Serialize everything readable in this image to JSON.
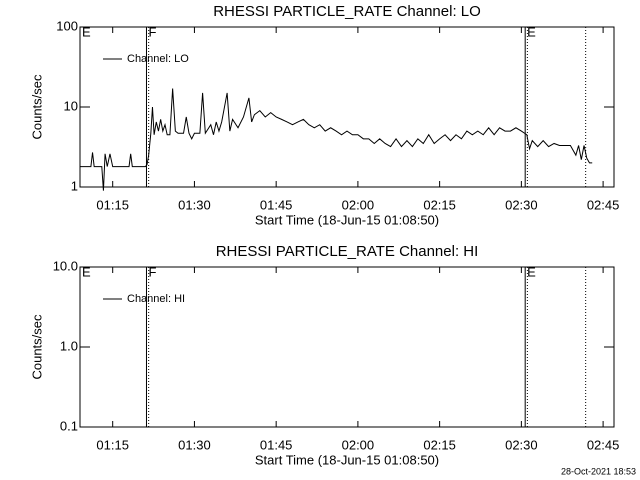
{
  "chart_data": [
    {
      "type": "line",
      "title": "RHESSI PARTICLE_RATE Channel: LO",
      "xlabel": "Start Time (18-Jun-15 01:08:50)",
      "ylabel": "Counts/sec",
      "x": [
        69,
        71,
        71.3,
        71.6,
        73,
        73.3,
        73.6,
        74,
        74.5,
        75,
        78,
        78.3,
        78.6,
        81,
        81.3,
        81.6,
        82,
        82.3,
        82.6,
        83,
        83.4,
        83.8,
        84.2,
        84.6,
        85,
        85.5,
        86,
        86.5,
        87,
        88,
        88.5,
        89,
        89.5,
        90,
        91,
        91.5,
        92,
        93,
        93.5,
        94,
        94.5,
        95,
        96,
        96.5,
        97,
        98,
        99,
        100,
        100.5,
        101,
        102,
        103,
        104,
        105,
        106,
        107,
        108,
        109,
        110,
        111,
        112,
        113,
        114,
        115,
        116,
        117,
        118,
        119,
        120,
        121,
        122,
        123,
        124,
        125,
        126,
        127,
        128,
        129,
        130,
        131,
        132,
        133,
        134,
        135,
        136,
        137,
        138,
        139,
        140,
        141,
        142,
        143,
        144,
        145,
        146,
        147,
        148,
        149,
        150,
        151,
        151.5,
        152,
        153,
        154,
        155,
        156,
        157,
        158,
        159,
        160,
        160.5,
        161,
        161.5,
        162,
        162.5,
        163
      ],
      "series": [
        {
          "name": "Channel: LO",
          "color": "#000000",
          "values": [
            1.8,
            1.8,
            2.7,
            1.8,
            1.8,
            0.9,
            2.6,
            1.8,
            2.6,
            1.8,
            1.8,
            2.6,
            1.8,
            1.8,
            1.9,
            2.5,
            4.7,
            10,
            4.5,
            6.5,
            5,
            7,
            5,
            6,
            4.5,
            4.5,
            17,
            5,
            4.7,
            4.7,
            7.5,
            4.7,
            4,
            4.7,
            4.7,
            15,
            4.7,
            6,
            4.5,
            6.5,
            5,
            6.5,
            15,
            5,
            7,
            5.5,
            7.5,
            13,
            6.5,
            8,
            9,
            7.5,
            8.5,
            7.5,
            7,
            6.5,
            6,
            6.5,
            7,
            6,
            5.5,
            6,
            5,
            5.5,
            5,
            4.5,
            5,
            4.5,
            4.5,
            4,
            4,
            3.5,
            4,
            3.5,
            3.2,
            4,
            3.2,
            3.8,
            3.2,
            4,
            3.5,
            4.5,
            3.5,
            4,
            4.5,
            3.8,
            4.5,
            4,
            5,
            4.5,
            5,
            4.5,
            5.5,
            4.5,
            5.5,
            5,
            5,
            5.5,
            5,
            4.5,
            3,
            3.8,
            3.2,
            3.8,
            3.2,
            3.5,
            3.3,
            3.3,
            3.3,
            2.5,
            3.3,
            2.2,
            3.3,
            2.3,
            2,
            2
          ]
        }
      ],
      "xlim": [
        69,
        167
      ],
      "xticks": [
        {
          "value": 75,
          "label": "01:15"
        },
        {
          "value": 90,
          "label": "01:30"
        },
        {
          "value": 105,
          "label": "01:45"
        },
        {
          "value": 120,
          "label": "02:00"
        },
        {
          "value": 135,
          "label": "02:15"
        },
        {
          "value": 150,
          "label": "02:30"
        },
        {
          "value": 165,
          "label": "02:45"
        }
      ],
      "ylim": [
        1,
        100
      ],
      "yticks": [
        1,
        10,
        100
      ],
      "log_y": true,
      "legend": "upper left",
      "vlines": [
        {
          "x": 69,
          "style": "solid",
          "label": "E"
        },
        {
          "x": 81.2,
          "style": "solid",
          "label": "F"
        },
        {
          "x": 81.6,
          "style": "dotted"
        },
        {
          "x": 150.7,
          "style": "solid",
          "label": "E"
        },
        {
          "x": 151.1,
          "style": "dotted"
        },
        {
          "x": 161.8,
          "style": "dotted"
        }
      ]
    },
    {
      "type": "line",
      "title": "RHESSI PARTICLE_RATE Channel: HI",
      "xlabel": "Start Time (18-Jun-15 01:08:50)",
      "ylabel": "Counts/sec",
      "x": [],
      "series": [
        {
          "name": "Channel: HI",
          "color": "#000000",
          "values": []
        }
      ],
      "xlim": [
        69,
        167
      ],
      "xticks": [
        {
          "value": 75,
          "label": "01:15"
        },
        {
          "value": 90,
          "label": "01:30"
        },
        {
          "value": 105,
          "label": "01:45"
        },
        {
          "value": 120,
          "label": "02:00"
        },
        {
          "value": 135,
          "label": "02:15"
        },
        {
          "value": 150,
          "label": "02:30"
        },
        {
          "value": 165,
          "label": "02:45"
        }
      ],
      "ylim": [
        0.1,
        10
      ],
      "yticks": [
        0.1,
        {
          "value": 1,
          "label": "1.0"
        },
        {
          "value": 10,
          "label": "10.0"
        }
      ],
      "log_y": true,
      "legend": "upper left",
      "vlines": [
        {
          "x": 69,
          "style": "solid",
          "label": "E"
        },
        {
          "x": 81.2,
          "style": "solid",
          "label": "F"
        },
        {
          "x": 81.6,
          "style": "dotted"
        },
        {
          "x": 150.7,
          "style": "solid",
          "label": "E"
        },
        {
          "x": 151.1,
          "style": "dotted"
        },
        {
          "x": 161.8,
          "style": "dotted"
        }
      ]
    }
  ],
  "footer": "28-Oct-2021 18:53"
}
